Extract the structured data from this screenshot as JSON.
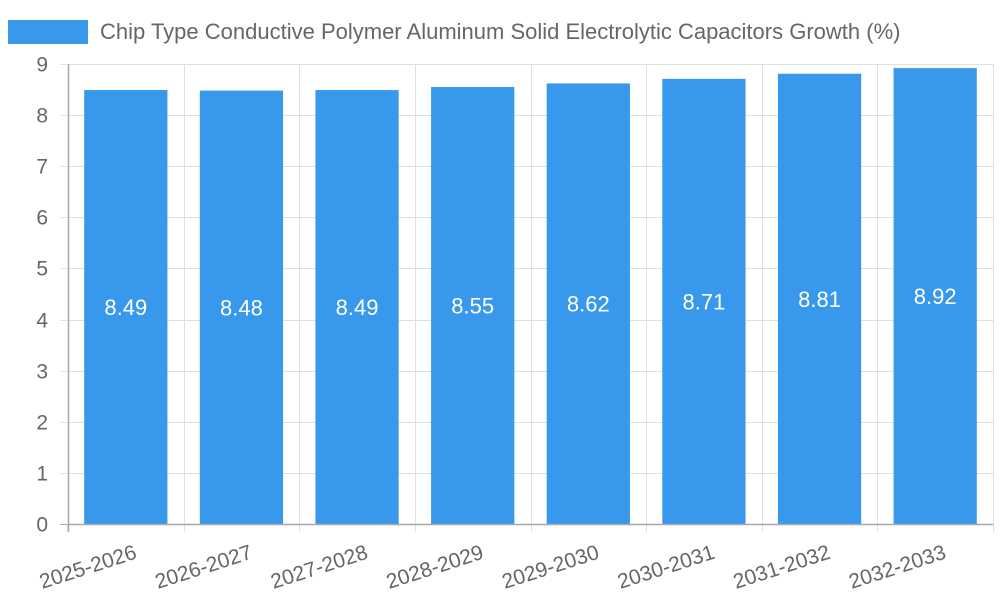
{
  "chart_data": {
    "type": "bar",
    "title": "",
    "legend": [
      "Chip Type Conductive Polymer Aluminum Solid Electrolytic Capacitors Growth (%)"
    ],
    "legend_position": "top",
    "categories": [
      "2025-2026",
      "2026-2027",
      "2027-2028",
      "2028-2029",
      "2029-2030",
      "2030-2031",
      "2031-2032",
      "2032-2033"
    ],
    "series": [
      {
        "name": "Chip Type Conductive Polymer Aluminum Solid Electrolytic Capacitors Growth (%)",
        "values": [
          8.49,
          8.48,
          8.49,
          8.55,
          8.62,
          8.71,
          8.81,
          8.92
        ],
        "color": "#3899ec"
      }
    ],
    "data_labels": [
      "8.49",
      "8.48",
      "8.49",
      "8.55",
      "8.62",
      "8.71",
      "8.81",
      "8.92"
    ],
    "xlabel": "",
    "ylabel": "",
    "ylim": [
      0,
      9
    ],
    "yticks": [
      "0",
      "1",
      "2",
      "3",
      "4",
      "5",
      "6",
      "7",
      "8",
      "9"
    ],
    "grid": true
  },
  "legend": {
    "label": "Chip Type Conductive Polymer Aluminum Solid Electrolytic Capacitors Growth (%)",
    "color": "#3899ec"
  }
}
